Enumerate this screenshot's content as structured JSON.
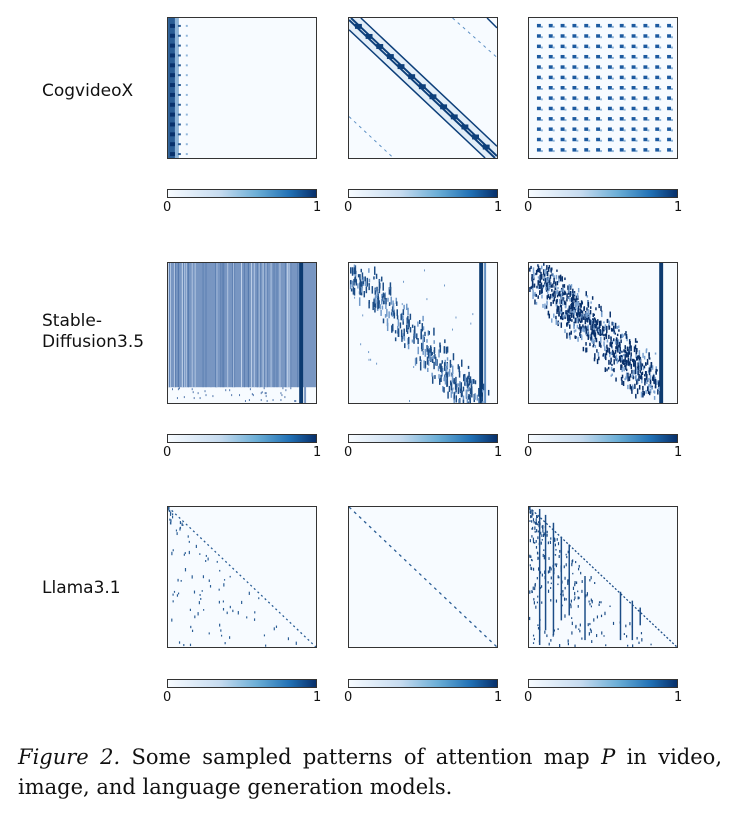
{
  "rows": [
    {
      "label_lines": [
        "CogvideoX"
      ]
    },
    {
      "label_lines": [
        "Stable-",
        "Diffusion3.5"
      ]
    },
    {
      "label_lines": [
        "Llama3.1"
      ]
    }
  ],
  "colorbar": {
    "min_label": "0",
    "max_label": "1"
  },
  "colors": {
    "dark": "#08306b",
    "mid": "#4a7fb5",
    "light": "#f7fbff"
  },
  "caption": {
    "figure_label": "Figure 2.",
    "text_before": " Some sampled patterns of attention map ",
    "math_symbol": "P",
    "text_after": " in video, image, and language generation models."
  }
}
